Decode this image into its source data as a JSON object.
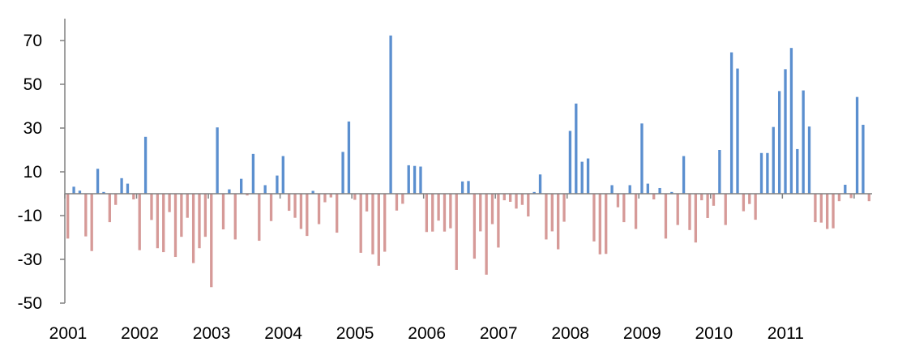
{
  "chart_data": {
    "type": "bar",
    "title": "",
    "xlabel": "",
    "ylabel": "",
    "ylim": [
      -50,
      80
    ],
    "y_ticks": [
      "70",
      "50",
      "30",
      "10",
      "-10",
      "-30",
      "-50"
    ],
    "y_tick_values": [
      70,
      50,
      30,
      10,
      -10,
      -30,
      -50
    ],
    "x_tick_labels": [
      "2001",
      "2002",
      "2003",
      "2004",
      "2005",
      "2006",
      "2007",
      "2008",
      "2009",
      "2010",
      "2011"
    ],
    "x_start": "2001-01",
    "frequency": "monthly",
    "grid": false,
    "legend": "none",
    "positive_color": "#5b8fcf",
    "negative_color": "#d69a98",
    "values": [
      -20.5,
      3.2,
      1.4,
      -19.5,
      -26.2,
      11.4,
      0.8,
      -13.0,
      -5.1,
      7.1,
      4.6,
      -2.6,
      -25.8,
      26.0,
      -12.0,
      -24.9,
      -26.7,
      -8.4,
      -28.9,
      -19.7,
      -11.0,
      -31.7,
      -24.9,
      -19.7,
      -42.7,
      30.3,
      -16.3,
      2.0,
      -20.9,
      6.8,
      -0.8,
      18.2,
      -21.5,
      3.9,
      -12.5,
      8.3,
      17.2,
      -7.8,
      -11.0,
      -16.1,
      -19.3,
      1.3,
      -13.9,
      -3.9,
      -1.7,
      -17.8,
      19.1,
      33.0,
      -2.8,
      -27.0,
      -8.1,
      -27.7,
      -32.9,
      -26.5,
      72.3,
      -7.7,
      -4.6,
      13.0,
      12.7,
      12.4,
      -17.5,
      -17.3,
      -12.3,
      -17.3,
      -15.8,
      -34.8,
      5.6,
      5.8,
      -29.7,
      -17.2,
      -37.0,
      -13.9,
      -24.6,
      -3.0,
      -3.7,
      -6.8,
      -5.1,
      -10.4,
      0.8,
      8.8,
      -20.9,
      -17.2,
      -25.4,
      -12.8,
      28.7,
      41.2,
      14.6,
      16.1,
      -21.8,
      -27.7,
      -27.5,
      3.9,
      -6.2,
      -13.0,
      3.9,
      -16.1,
      32.1,
      4.6,
      -2.6,
      2.6,
      -20.5,
      0.8,
      -14.3,
      17.2,
      -16.6,
      -22.3,
      -3.0,
      -11.1,
      -5.5,
      20.0,
      -14.3,
      64.6,
      57.2,
      -8.0,
      -4.7,
      -11.9,
      18.6,
      18.6,
      30.5,
      46.9,
      56.9,
      66.6,
      20.4,
      47.2,
      30.7,
      -13.0,
      -13.2,
      -16.1,
      -15.8,
      -3.4,
      4.1,
      -2.0,
      44.2,
      31.5,
      -3.4
    ]
  }
}
